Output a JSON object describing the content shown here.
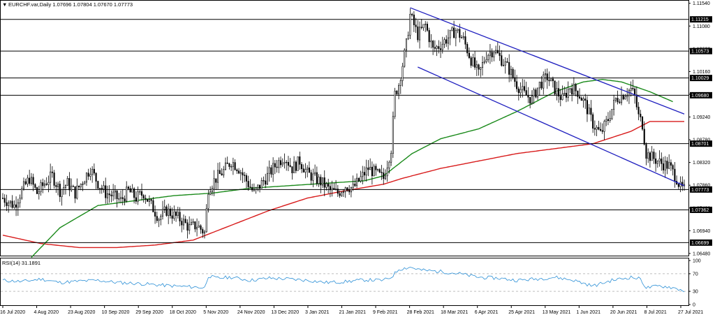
{
  "header": {
    "symbol_line": "EURCHF.var,Daily  1.07696 1.07804 1.07670 1.07773",
    "menu_glyph": "▼"
  },
  "rsi": {
    "label": "RSI(14) 31.1891",
    "levels": [
      100,
      70,
      30,
      0
    ],
    "level_labels": [
      "100",
      "70",
      "30",
      "0"
    ]
  },
  "colors": {
    "candle": "#000000",
    "ma_short": "#d81b1b",
    "ma_long": "#1a8a1a",
    "channel": "#1f1fbf",
    "rsi_line": "#2b8fd6",
    "level_box": "#000000"
  },
  "chart_data": {
    "type": "candlestick",
    "instrument": "EURCHF",
    "timeframe": "Daily",
    "ylim": [
      1.0645,
      1.1155
    ],
    "y_ticks": [
      1.1154,
      1.1108,
      1.1062,
      1.1016,
      1.097,
      1.0924,
      1.0878,
      1.0832,
      1.0786,
      1.074,
      1.0694,
      1.0648
    ],
    "y_tick_labels": [
      "1.11540",
      "1.11080",
      "1.10620",
      "1.10160",
      "1.09700",
      "1.09240",
      "1.08780",
      "1.08320",
      "1.07860",
      "1.07400",
      "1.06940",
      "1.06480"
    ],
    "x_labels": [
      "16 Jul 2020",
      "4 Aug 2020",
      "23 Aug 2020",
      "10 Sep 2020",
      "29 Sep 2020",
      "18 Oct 2020",
      "5 Nov 2020",
      "24 Nov 2020",
      "13 Dec 2020",
      "3 Jan 2021",
      "21 Jan 2021",
      "9 Feb 2021",
      "28 Feb 2021",
      "18 Mar 2021",
      "6 Apr 2021",
      "25 Apr 2021",
      "13 May 2021",
      "1 Jun 2021",
      "20 Jun 2021",
      "8 Jul 2021",
      "27 Jul 2021"
    ],
    "horizontal_levels": [
      {
        "value": 1.11215,
        "label": "1.11215"
      },
      {
        "value": 1.10573,
        "label": "1.10573"
      },
      {
        "value": 1.10029,
        "label": "1.10029"
      },
      {
        "value": 1.0968,
        "label": "1.09680"
      },
      {
        "value": 1.08701,
        "label": "1.08701"
      },
      {
        "value": 1.07773,
        "label": "1.07773"
      },
      {
        "value": 1.07362,
        "label": "1.07362"
      },
      {
        "value": 1.06699,
        "label": "1.06699"
      }
    ],
    "price_path": [
      [
        0,
        1.076
      ],
      [
        6,
        1.0745
      ],
      [
        10,
        1.0775
      ],
      [
        14,
        1.08
      ],
      [
        18,
        1.077
      ],
      [
        22,
        1.079
      ],
      [
        26,
        1.0805
      ],
      [
        30,
        1.0775
      ],
      [
        34,
        1.079
      ],
      [
        38,
        1.077
      ],
      [
        42,
        1.0795
      ],
      [
        46,
        1.082
      ],
      [
        50,
        1.079
      ],
      [
        54,
        1.077
      ],
      [
        58,
        1.0765
      ],
      [
        62,
        1.0755
      ],
      [
        66,
        1.0775
      ],
      [
        70,
        1.076
      ],
      [
        74,
        1.077
      ],
      [
        78,
        1.0745
      ],
      [
        82,
        1.072
      ],
      [
        86,
        1.0735
      ],
      [
        90,
        1.0725
      ],
      [
        94,
        1.0715
      ],
      [
        98,
        1.07
      ],
      [
        102,
        1.0705
      ],
      [
        106,
        1.069
      ],
      [
        108,
        1.078
      ],
      [
        112,
        1.08
      ],
      [
        116,
        1.0815
      ],
      [
        120,
        1.0835
      ],
      [
        124,
        1.082
      ],
      [
        128,
        1.0795
      ],
      [
        132,
        1.077
      ],
      [
        136,
        1.079
      ],
      [
        140,
        1.081
      ],
      [
        144,
        1.083
      ],
      [
        148,
        1.0845
      ],
      [
        152,
        1.082
      ],
      [
        156,
        1.0835
      ],
      [
        160,
        1.081
      ],
      [
        164,
        1.08
      ],
      [
        168,
        1.079
      ],
      [
        172,
        1.0775
      ],
      [
        176,
        1.077
      ],
      [
        180,
        1.0785
      ],
      [
        184,
        1.078
      ],
      [
        188,
        1.08
      ],
      [
        192,
        1.082
      ],
      [
        196,
        1.081
      ],
      [
        200,
        1.08
      ],
      [
        204,
        1.086
      ],
      [
        206,
        1.097
      ],
      [
        208,
        1.099
      ],
      [
        212,
        1.107
      ],
      [
        214,
        1.113
      ],
      [
        218,
        1.109
      ],
      [
        222,
        1.111
      ],
      [
        226,
        1.106
      ],
      [
        230,
        1.107
      ],
      [
        234,
        1.1085
      ],
      [
        238,
        1.11
      ],
      [
        242,
        1.108
      ],
      [
        246,
        1.104
      ],
      [
        250,
        1.101
      ],
      [
        254,
        1.105
      ],
      [
        258,
        1.106
      ],
      [
        262,
        1.104
      ],
      [
        266,
        1.102
      ],
      [
        270,
        1.099
      ],
      [
        274,
        1.097
      ],
      [
        278,
        1.096
      ],
      [
        282,
        1.099
      ],
      [
        286,
        1.1005
      ],
      [
        290,
        1.098
      ],
      [
        294,
        1.096
      ],
      [
        298,
        1.0985
      ],
      [
        302,
        1.0975
      ],
      [
        306,
        1.095
      ],
      [
        310,
        1.091
      ],
      [
        314,
        1.089
      ],
      [
        318,
        1.092
      ],
      [
        322,
        1.096
      ],
      [
        326,
        1.097
      ],
      [
        330,
        1.098
      ],
      [
        332,
        1.0965
      ],
      [
        334,
        1.0925
      ],
      [
        336,
        1.091
      ],
      [
        338,
        1.085
      ],
      [
        342,
        1.084
      ],
      [
        346,
        1.083
      ],
      [
        350,
        1.0825
      ],
      [
        354,
        1.08
      ],
      [
        356,
        1.078
      ],
      [
        358,
        1.0777
      ]
    ],
    "series": [
      {
        "name": "",
        "color_key": "ma_short",
        "points": [
          [
            0,
            1.0685
          ],
          [
            20,
            1.0668
          ],
          [
            40,
            1.066
          ],
          [
            60,
            1.066
          ],
          [
            80,
            1.0665
          ],
          [
            100,
            1.0675
          ],
          [
            120,
            1.0705
          ],
          [
            140,
            1.0735
          ],
          [
            160,
            1.076
          ],
          [
            180,
            1.0775
          ],
          [
            200,
            1.0788
          ],
          [
            210,
            1.08
          ],
          [
            230,
            1.082
          ],
          [
            250,
            1.0835
          ],
          [
            270,
            1.085
          ],
          [
            290,
            1.086
          ],
          [
            310,
            1.087
          ],
          [
            330,
            1.0895
          ],
          [
            340,
            1.0915
          ],
          [
            358,
            1.0915
          ]
        ]
      },
      {
        "name": "",
        "color_key": "ma_long",
        "points": [
          [
            15,
            1.064
          ],
          [
            30,
            1.07
          ],
          [
            50,
            1.0745
          ],
          [
            70,
            1.0755
          ],
          [
            90,
            1.0765
          ],
          [
            110,
            1.077
          ],
          [
            130,
            1.078
          ],
          [
            150,
            1.0785
          ],
          [
            170,
            1.079
          ],
          [
            190,
            1.0795
          ],
          [
            200,
            1.0805
          ],
          [
            215,
            1.085
          ],
          [
            230,
            1.088
          ],
          [
            250,
            1.09
          ],
          [
            270,
            1.0935
          ],
          [
            290,
            1.0975
          ],
          [
            305,
            1.0995
          ],
          [
            315,
            1.1
          ],
          [
            325,
            1.0995
          ],
          [
            340,
            1.0975
          ],
          [
            352,
            1.0955
          ]
        ]
      }
    ],
    "channel_lines": [
      {
        "from": [
          214,
          1.1145
        ],
        "to": [
          358,
          1.093
        ]
      },
      {
        "from": [
          218,
          1.1025
        ],
        "to": [
          358,
          1.0785
        ]
      }
    ],
    "rsi_points": [
      [
        0,
        55
      ],
      [
        10,
        52
      ],
      [
        20,
        58
      ],
      [
        30,
        50
      ],
      [
        40,
        53
      ],
      [
        50,
        55
      ],
      [
        60,
        50
      ],
      [
        70,
        48
      ],
      [
        80,
        45
      ],
      [
        90,
        42
      ],
      [
        100,
        40
      ],
      [
        106,
        38
      ],
      [
        108,
        65
      ],
      [
        112,
        60
      ],
      [
        120,
        62
      ],
      [
        130,
        55
      ],
      [
        140,
        60
      ],
      [
        150,
        58
      ],
      [
        160,
        55
      ],
      [
        170,
        50
      ],
      [
        180,
        52
      ],
      [
        190,
        56
      ],
      [
        200,
        55
      ],
      [
        204,
        62
      ],
      [
        208,
        80
      ],
      [
        214,
        85
      ],
      [
        220,
        78
      ],
      [
        230,
        75
      ],
      [
        240,
        70
      ],
      [
        250,
        62
      ],
      [
        260,
        60
      ],
      [
        270,
        55
      ],
      [
        280,
        58
      ],
      [
        290,
        62
      ],
      [
        300,
        55
      ],
      [
        310,
        42
      ],
      [
        320,
        55
      ],
      [
        330,
        62
      ],
      [
        335,
        58
      ],
      [
        338,
        38
      ],
      [
        345,
        42
      ],
      [
        350,
        40
      ],
      [
        355,
        35
      ],
      [
        358,
        31
      ]
    ]
  }
}
